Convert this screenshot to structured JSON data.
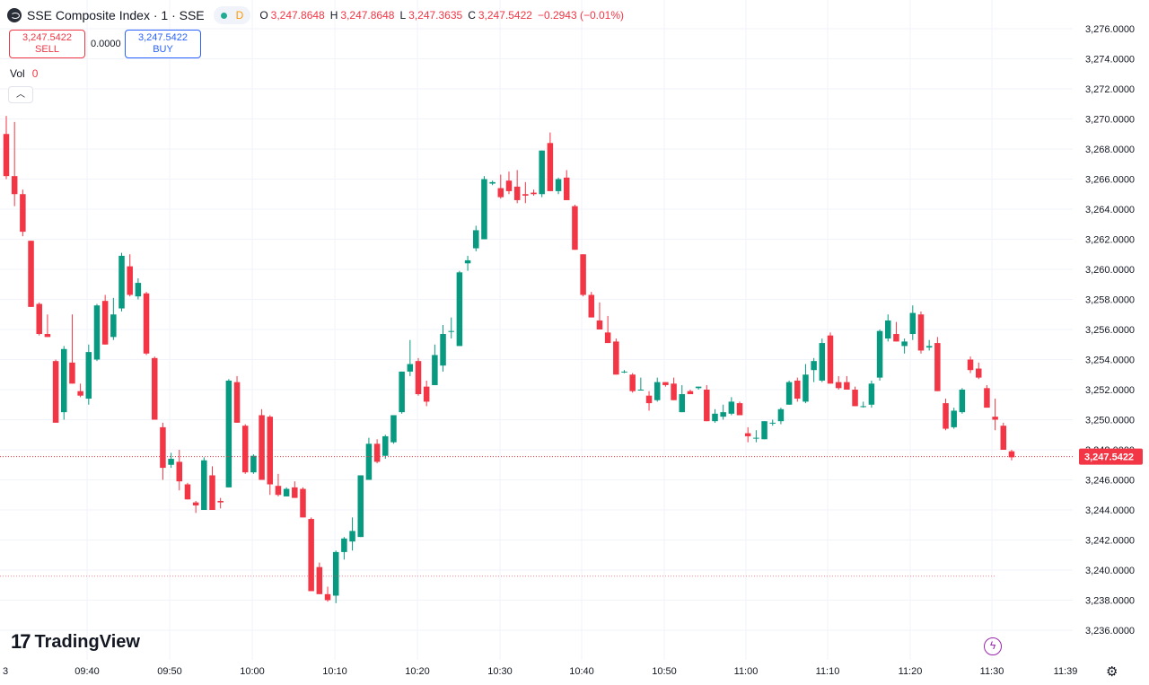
{
  "header": {
    "symbol": "SSE Composite Index · 1 · SSE",
    "status_letter": "D",
    "open_label": "O",
    "open": "3,247.8648",
    "high_label": "H",
    "high": "3,247.8648",
    "low_label": "L",
    "low": "3,247.3635",
    "close_label": "C",
    "close": "3,247.5422",
    "change": "−0.2943 (−0.01%)"
  },
  "trade": {
    "sell_price": "3,247.5422",
    "sell_label": "SELL",
    "spread": "0.0000",
    "buy_price": "3,247.5422",
    "buy_label": "BUY"
  },
  "volume": {
    "label": "Vol",
    "value": "0"
  },
  "collapse_icon": "chevron-up-icon",
  "brand": {
    "mark": "17",
    "name": "TradingView"
  },
  "icons": {
    "alert": "lightning-icon",
    "settings": "gear-icon"
  },
  "colors": {
    "up": "#089981",
    "down": "#f23645",
    "price_label_bg": "#f23645",
    "grid": "#f0f3fa"
  },
  "chart_data": {
    "type": "candlestick",
    "price_axis_ticks": [
      "3,236.0000",
      "3,238.0000",
      "3,240.0000",
      "3,242.0000",
      "3,244.0000",
      "3,246.0000",
      "3,248.0000",
      "3,250.0000",
      "3,252.0000",
      "3,254.0000",
      "3,256.0000",
      "3,258.0000",
      "3,260.0000",
      "3,262.0000",
      "3,264.0000",
      "3,266.0000",
      "3,268.0000",
      "3,270.0000",
      "3,272.0000",
      "3,274.0000",
      "3,276.0000"
    ],
    "time_axis_ticks": [
      "3",
      "09:40",
      "09:50",
      "10:00",
      "10:10",
      "10:20",
      "10:30",
      "10:40",
      "10:50",
      "11:00",
      "11:10",
      "11:20",
      "11:30",
      "11:39"
    ],
    "ylim": [
      3235.0,
      3277.0
    ],
    "current_price": 3247.5422,
    "current_price_label": "3,247.5422",
    "reference_price": 3239.6,
    "candles": [
      [
        3269.0,
        3270.2,
        3266.0,
        3266.2
      ],
      [
        3266.2,
        3269.8,
        3264.2,
        3265.0
      ],
      [
        3265.0,
        3265.3,
        3262.2,
        3262.5
      ],
      [
        3261.9,
        3261.9,
        3257.5,
        3257.5
      ],
      [
        3257.7,
        3257.8,
        3255.6,
        3255.7
      ],
      [
        3255.7,
        3257.0,
        3255.5,
        3255.5
      ],
      [
        3253.9,
        3254.0,
        3249.8,
        3249.8
      ],
      [
        3250.5,
        3254.9,
        3250.0,
        3254.7
      ],
      [
        3253.8,
        3257.0,
        3252.4,
        3252.4
      ],
      [
        3251.9,
        3252.4,
        3251.5,
        3251.6
      ],
      [
        3251.4,
        3255.0,
        3251.0,
        3254.5
      ],
      [
        3254.0,
        3257.7,
        3253.9,
        3257.6
      ],
      [
        3257.9,
        3258.3,
        3255.0,
        3255.0
      ],
      [
        3255.5,
        3258.1,
        3255.3,
        3257.0
      ],
      [
        3257.4,
        3261.1,
        3257.2,
        3260.9
      ],
      [
        3260.2,
        3261.0,
        3258.2,
        3258.3
      ],
      [
        3258.2,
        3259.4,
        3258.0,
        3259.1
      ],
      [
        3258.4,
        3258.5,
        3254.3,
        3254.4
      ],
      [
        3254.1,
        3254.2,
        3250.0,
        3250.0
      ],
      [
        3249.5,
        3249.8,
        3246.0,
        3246.8
      ],
      [
        3247.0,
        3247.8,
        3246.8,
        3247.4
      ],
      [
        3247.2,
        3248.0,
        3245.3,
        3245.9
      ],
      [
        3245.7,
        3245.8,
        3244.7,
        3244.7
      ],
      [
        3244.5,
        3244.6,
        3243.8,
        3244.3
      ],
      [
        3244.0,
        3247.5,
        3244.0,
        3247.3
      ],
      [
        3246.3,
        3246.9,
        3244.0,
        3244.0
      ],
      [
        3244.6,
        3244.8,
        3244.1,
        3244.5
      ],
      [
        3245.5,
        3252.7,
        3245.5,
        3252.6
      ],
      [
        3252.5,
        3252.9,
        3249.8,
        3249.8
      ],
      [
        3249.6,
        3249.7,
        3246.4,
        3246.5
      ],
      [
        3246.5,
        3247.7,
        3246.4,
        3247.6
      ],
      [
        3250.3,
        3250.7,
        3246.0,
        3246.0
      ],
      [
        3250.2,
        3250.3,
        3245.0,
        3245.7
      ],
      [
        3245.6,
        3246.4,
        3244.9,
        3245.0
      ],
      [
        3244.9,
        3245.5,
        3244.9,
        3245.4
      ],
      [
        3245.5,
        3245.9,
        3244.8,
        3244.8
      ],
      [
        3245.4,
        3245.5,
        3243.5,
        3243.5
      ],
      [
        3243.4,
        3243.5,
        3238.6,
        3238.6
      ],
      [
        3240.2,
        3240.5,
        3238.4,
        3238.4
      ],
      [
        3238.4,
        3238.9,
        3237.9,
        3238.0
      ],
      [
        3238.3,
        3241.3,
        3237.8,
        3241.2
      ],
      [
        3241.2,
        3242.2,
        3240.7,
        3242.1
      ],
      [
        3241.9,
        3243.5,
        3241.3,
        3242.6
      ],
      [
        3242.2,
        3246.3,
        3242.2,
        3246.3
      ],
      [
        3246.0,
        3248.8,
        3246.0,
        3248.4
      ],
      [
        3248.4,
        3248.7,
        3247.1,
        3247.2
      ],
      [
        3247.6,
        3249.0,
        3247.4,
        3248.9
      ],
      [
        3248.5,
        3250.3,
        3248.4,
        3250.3
      ],
      [
        3250.5,
        3253.2,
        3250.4,
        3253.2
      ],
      [
        3253.2,
        3255.3,
        3252.9,
        3253.7
      ],
      [
        3253.9,
        3254.1,
        3251.6,
        3251.7
      ],
      [
        3252.2,
        3252.6,
        3250.9,
        3251.2
      ],
      [
        3252.3,
        3255.0,
        3252.3,
        3254.3
      ],
      [
        3253.6,
        3256.3,
        3253.2,
        3255.7
      ],
      [
        3255.9,
        3256.8,
        3255.4,
        3255.9
      ],
      [
        3254.9,
        3259.9,
        3254.9,
        3259.8
      ],
      [
        3260.4,
        3260.9,
        3259.9,
        3260.6
      ],
      [
        3261.4,
        3262.9,
        3261.2,
        3262.6
      ],
      [
        3262.0,
        3266.2,
        3262.0,
        3266.0
      ],
      [
        3265.7,
        3265.9,
        3265.6,
        3265.8
      ],
      [
        3265.4,
        3266.3,
        3264.7,
        3264.8
      ],
      [
        3265.9,
        3266.5,
        3265.0,
        3265.2
      ],
      [
        3265.5,
        3266.6,
        3264.4,
        3264.6
      ],
      [
        3265.0,
        3265.8,
        3264.4,
        3264.9
      ],
      [
        3265.1,
        3265.3,
        3264.9,
        3265.0
      ],
      [
        3265.0,
        3267.9,
        3264.8,
        3267.9
      ],
      [
        3268.4,
        3269.1,
        3265.2,
        3265.2
      ],
      [
        3265.2,
        3266.1,
        3265.0,
        3266.0
      ],
      [
        3266.1,
        3266.6,
        3264.6,
        3264.6
      ],
      [
        3264.2,
        3264.3,
        3261.3,
        3261.3
      ],
      [
        3261.0,
        3261.0,
        3258.2,
        3258.3
      ],
      [
        3258.3,
        3258.5,
        3256.8,
        3256.8
      ],
      [
        3256.6,
        3257.8,
        3256.0,
        3256.0
      ],
      [
        3255.8,
        3256.9,
        3255.1,
        3255.1
      ],
      [
        3255.2,
        3255.4,
        3253.0,
        3253.0
      ],
      [
        3253.2,
        3253.3,
        3253.1,
        3253.2
      ],
      [
        3253.0,
        3253.1,
        3251.8,
        3251.9
      ],
      [
        3252.0,
        3252.8,
        3252.0,
        3252.0
      ],
      [
        3251.6,
        3251.9,
        3250.6,
        3251.1
      ],
      [
        3251.3,
        3252.8,
        3251.2,
        3252.5
      ],
      [
        3252.5,
        3252.5,
        3252.2,
        3252.3
      ],
      [
        3252.4,
        3252.8,
        3251.3,
        3251.3
      ],
      [
        3250.5,
        3252.3,
        3250.5,
        3251.7
      ],
      [
        3251.9,
        3252.0,
        3251.7,
        3251.7
      ],
      [
        3252.1,
        3252.2,
        3252.0,
        3252.2
      ],
      [
        3252.0,
        3252.3,
        3249.9,
        3249.9
      ],
      [
        3249.9,
        3250.7,
        3249.8,
        3250.4
      ],
      [
        3250.2,
        3251.0,
        3250.0,
        3250.5
      ],
      [
        3250.4,
        3251.5,
        3250.3,
        3251.2
      ],
      [
        3251.1,
        3251.2,
        3250.3,
        3250.3
      ],
      [
        3249.1,
        3249.5,
        3248.5,
        3248.9
      ],
      [
        3248.8,
        3249.3,
        3248.5,
        3248.8
      ],
      [
        3248.7,
        3249.9,
        3248.7,
        3249.9
      ],
      [
        3249.8,
        3250.0,
        3249.6,
        3249.8
      ],
      [
        3249.9,
        3250.8,
        3249.7,
        3250.7
      ],
      [
        3251.0,
        3252.6,
        3251.0,
        3252.5
      ],
      [
        3252.6,
        3252.8,
        3251.2,
        3251.4
      ],
      [
        3251.2,
        3253.7,
        3251.1,
        3253.0
      ],
      [
        3253.3,
        3254.1,
        3252.5,
        3253.9
      ],
      [
        3252.6,
        3255.4,
        3252.5,
        3255.1
      ],
      [
        3255.6,
        3255.8,
        3252.4,
        3252.4
      ],
      [
        3252.5,
        3252.9,
        3252.0,
        3252.1
      ],
      [
        3252.5,
        3252.9,
        3252.0,
        3252.0
      ],
      [
        3252.0,
        3252.2,
        3250.9,
        3250.9
      ],
      [
        3250.9,
        3251.2,
        3250.8,
        3250.9
      ],
      [
        3251.0,
        3252.6,
        3250.8,
        3252.4
      ],
      [
        3252.8,
        3256.0,
        3252.6,
        3255.9
      ],
      [
        3255.4,
        3257.0,
        3255.2,
        3256.6
      ],
      [
        3255.7,
        3256.5,
        3255.2,
        3255.2
      ],
      [
        3254.9,
        3255.4,
        3254.4,
        3255.2
      ],
      [
        3255.7,
        3257.6,
        3255.3,
        3257.1
      ],
      [
        3257.0,
        3257.2,
        3254.4,
        3254.6
      ],
      [
        3254.8,
        3255.3,
        3254.6,
        3254.9
      ],
      [
        3255.1,
        3255.5,
        3251.9,
        3251.9
      ],
      [
        3251.1,
        3251.4,
        3249.3,
        3249.4
      ],
      [
        3249.5,
        3250.8,
        3249.4,
        3250.6
      ],
      [
        3250.5,
        3252.1,
        3250.4,
        3252.0
      ],
      [
        3254.0,
        3254.2,
        3253.1,
        3253.3
      ],
      [
        3253.4,
        3253.8,
        3252.7,
        3252.8
      ],
      [
        3252.1,
        3252.3,
        3250.9,
        3250.8
      ],
      [
        3250.2,
        3251.4,
        3249.3,
        3250.0
      ],
      [
        3249.6,
        3249.8,
        3248.0,
        3248.0
      ],
      [
        3247.9,
        3248.0,
        3247.3,
        3247.5
      ]
    ]
  }
}
